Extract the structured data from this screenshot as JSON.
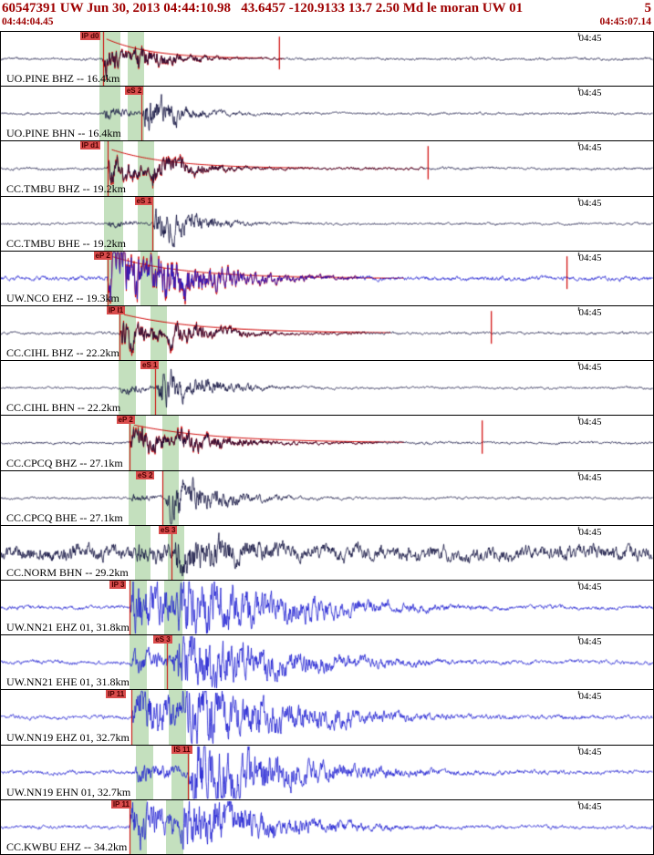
{
  "header": {
    "title": "60547391 UW Jun 30, 2013 04:44:10.98   43.6457 -120.9133 13.7 2.50 Md le moran UW 01",
    "right_label": "5",
    "start_time": "04:44:04.45",
    "end_time": "04:45:07.14"
  },
  "layout": {
    "minute_x": 0.886
  },
  "colors": {
    "header_text": "#9e0000",
    "dark": "#0b0b3b",
    "blue": "#1b1bd1",
    "red": "#cf0000",
    "band": "#9ccb92",
    "pick_bg": "#d94c4c",
    "pick_fg": "#4a0000"
  },
  "traces": [
    {
      "station": "UO.PINE BHZ -- 16.4km",
      "minute": "04:45",
      "c": "dark",
      "seed": 11,
      "pick": {
        "label": "IP d0",
        "lx": 0.121,
        "px": 0.156
      },
      "bands": [
        [
          0.151,
          0.032
        ],
        [
          0.194,
          0.025
        ]
      ],
      "b": 0.045,
      "p": 0.156,
      "ap": 0.55,
      "tp": 0.05,
      "s": 0.2,
      "as": 0.5,
      "ts": 0.07,
      "g": 1.15,
      "rs": [
        0.156,
        0.435
      ],
      "coda": [
        0.162,
        0.4,
        0.85,
        0.07
      ],
      "spike": 0.427
    },
    {
      "station": "UO.PINE BHN -- 16.4km",
      "minute": "04:45",
      "c": "dark",
      "seed": 22,
      "pick": {
        "label": "eS 2",
        "lx": 0.19,
        "px": 0.215
      },
      "bands": [
        [
          0.151,
          0.032
        ],
        [
          0.194,
          0.025
        ]
      ],
      "b": 0.04,
      "p": 0.156,
      "ap": 0.3,
      "tp": 0.045,
      "s": 0.215,
      "as": 0.92,
      "ts": 0.06,
      "g": 1.15
    },
    {
      "station": "CC.TMBU BHZ -- 19.2km",
      "minute": "04:45",
      "c": "dark",
      "seed": 33,
      "pick": {
        "label": "IP d1",
        "lx": 0.121,
        "px": 0.163
      },
      "bands": [
        [
          0.158,
          0.03
        ],
        [
          0.21,
          0.025
        ]
      ],
      "b": 0.045,
      "p": 0.163,
      "ap": 0.6,
      "tp": 0.06,
      "s": 0.226,
      "as": 0.52,
      "ts": 0.08,
      "g": 1.15,
      "rs": [
        0.163,
        0.65
      ],
      "coda": [
        0.17,
        0.48,
        0.8,
        0.09
      ],
      "spike": 0.655
    },
    {
      "station": "CC.TMBU BHE -- 19.2km",
      "minute": "04:45",
      "c": "dark",
      "seed": 44,
      "pick": {
        "label": "eS 1",
        "lx": 0.205,
        "px": 0.232
      },
      "bands": [
        [
          0.158,
          0.03
        ],
        [
          0.21,
          0.025
        ]
      ],
      "b": 0.04,
      "p": 0.163,
      "ap": 0.2,
      "tp": 0.05,
      "s": 0.232,
      "as": 0.88,
      "ts": 0.07,
      "g": 1.15
    },
    {
      "station": "UW.NCO EHZ -- 19.3km",
      "minute": "04:45",
      "c": "blue",
      "seed": 55,
      "pick": {
        "label": "eP 2",
        "lx": 0.142,
        "px": 0.164
      },
      "bands": [
        [
          0.162,
          0.027
        ],
        [
          0.214,
          0.027
        ]
      ],
      "b": 0.06,
      "p": 0.164,
      "ap": 0.95,
      "tp": 0.1,
      "s": 0.235,
      "as": 0.75,
      "ts": 0.11,
      "g": 1.5,
      "rs": [
        0.164,
        0.55
      ],
      "coda": [
        0.17,
        0.62,
        0.95,
        0.11
      ],
      "spike": 0.868
    },
    {
      "station": "CC.CIHL BHZ -- 22.2km",
      "minute": "04:45",
      "c": "dark",
      "seed": 66,
      "pick": {
        "label": "IP I1",
        "lx": 0.162,
        "px": 0.182
      },
      "bands": [
        [
          0.181,
          0.026
        ],
        [
          0.229,
          0.026
        ]
      ],
      "b": 0.045,
      "p": 0.182,
      "ap": 0.62,
      "tp": 0.07,
      "s": 0.252,
      "as": 0.5,
      "ts": 0.09,
      "g": 1.15,
      "rs": [
        0.182,
        0.56
      ],
      "coda": [
        0.189,
        0.6,
        0.8,
        0.12
      ],
      "spike": 0.752
    },
    {
      "station": "CC.CIHL BHN -- 22.2km",
      "minute": "04:45",
      "c": "dark",
      "seed": 77,
      "pick": {
        "label": "eS 1",
        "lx": 0.214,
        "px": 0.236
      },
      "bands": [
        [
          0.181,
          0.026
        ],
        [
          0.229,
          0.026
        ]
      ],
      "b": 0.04,
      "p": 0.182,
      "ap": 0.22,
      "tp": 0.05,
      "s": 0.238,
      "as": 0.85,
      "ts": 0.08,
      "g": 1.15
    },
    {
      "station": "CC.CPCQ BHZ -- 27.1km",
      "minute": "04:45",
      "c": "dark",
      "seed": 88,
      "pick": {
        "label": "eP 2",
        "lx": 0.177,
        "px": 0.197
      },
      "bands": [
        [
          0.196,
          0.026
        ],
        [
          0.247,
          0.026
        ]
      ],
      "b": 0.045,
      "p": 0.197,
      "ap": 0.56,
      "tp": 0.08,
      "s": 0.266,
      "as": 0.46,
      "ts": 0.09,
      "g": 1.15,
      "rs": [
        0.197,
        0.58
      ],
      "coda": [
        0.204,
        0.62,
        0.76,
        0.13
      ],
      "spike": 0.738
    },
    {
      "station": "CC.CPCQ BHE -- 27.1km",
      "minute": "04:45",
      "c": "dark",
      "seed": 99,
      "pick": {
        "label": "eS 2",
        "lx": 0.207,
        "px": 0.248
      },
      "bands": [
        [
          0.196,
          0.026
        ],
        [
          0.247,
          0.026
        ]
      ],
      "b": 0.04,
      "p": 0.197,
      "ap": 0.18,
      "tp": 0.05,
      "s": 0.252,
      "as": 0.9,
      "ts": 0.08,
      "g": 1.2
    },
    {
      "station": "CC.NORM BHN -- 29.2km",
      "minute": "04:45",
      "c": "dark",
      "seed": 110,
      "pick": {
        "label": "eS 3",
        "lx": 0.242,
        "px": 0.262
      },
      "bands": [
        [
          0.205,
          0.025
        ],
        [
          0.256,
          0.025
        ]
      ],
      "b": 0.26,
      "p": 0.205,
      "ap": 0.4,
      "tp": 0.25,
      "s": 0.262,
      "as": 0.85,
      "ts": 0.17,
      "g": 1.2
    },
    {
      "station": "UW.NN21 EHZ 01, 31.8km",
      "minute": "04:45",
      "c": "blue",
      "seed": 121,
      "pick": {
        "label": "IP 3",
        "lx": 0.167,
        "px": 0.197
      },
      "bands": [
        [
          0.197,
          0.027
        ],
        [
          0.251,
          0.027
        ]
      ],
      "b": 0.05,
      "p": 0.197,
      "ap": 0.8,
      "tp": 0.12,
      "s": 0.268,
      "as": 1.0,
      "ts": 0.17,
      "g": 1.6
    },
    {
      "station": "UW.NN21 EHE 01, 31.8km",
      "minute": "04:45",
      "c": "blue",
      "seed": 132,
      "pick": {
        "label": "eS 3",
        "lx": 0.234,
        "px": 0.255
      },
      "bands": [
        [
          0.197,
          0.027
        ],
        [
          0.251,
          0.027
        ]
      ],
      "b": 0.05,
      "p": 0.197,
      "ap": 0.35,
      "tp": 0.08,
      "s": 0.262,
      "as": 1.05,
      "ts": 0.16,
      "g": 1.6
    },
    {
      "station": "UW.NN19 EHZ 01, 32.7km",
      "minute": "04:45",
      "c": "blue",
      "seed": 143,
      "pick": {
        "label": "IP 11",
        "lx": 0.161,
        "px": 0.2
      },
      "bands": [
        [
          0.2,
          0.027
        ],
        [
          0.257,
          0.027
        ]
      ],
      "b": 0.05,
      "p": 0.2,
      "ap": 0.78,
      "tp": 0.12,
      "s": 0.272,
      "as": 1.0,
      "ts": 0.17,
      "g": 1.6
    },
    {
      "station": "UW.NN19 EHN 01, 32.7km",
      "minute": "04:45",
      "c": "blue",
      "seed": 154,
      "pick": {
        "label": "IS 11",
        "lx": 0.262,
        "px": 0.287
      },
      "bands": [
        [
          0.207,
          0.027
        ],
        [
          0.262,
          0.027
        ]
      ],
      "b": 0.05,
      "p": 0.204,
      "ap": 0.32,
      "tp": 0.08,
      "s": 0.287,
      "as": 1.05,
      "ts": 0.16,
      "g": 1.6
    },
    {
      "station": "CC.KWBU EHZ -- 34.2km",
      "minute": "04:45",
      "c": "blue",
      "seed": 165,
      "pick": {
        "label": "IP 11",
        "lx": 0.169,
        "px": 0.197
      },
      "bands": [
        [
          0.197,
          0.027
        ],
        [
          0.253,
          0.027
        ]
      ],
      "b": 0.05,
      "p": 0.197,
      "ap": 0.75,
      "tp": 0.1,
      "s": 0.272,
      "as": 0.95,
      "ts": 0.14,
      "g": 1.5
    }
  ]
}
